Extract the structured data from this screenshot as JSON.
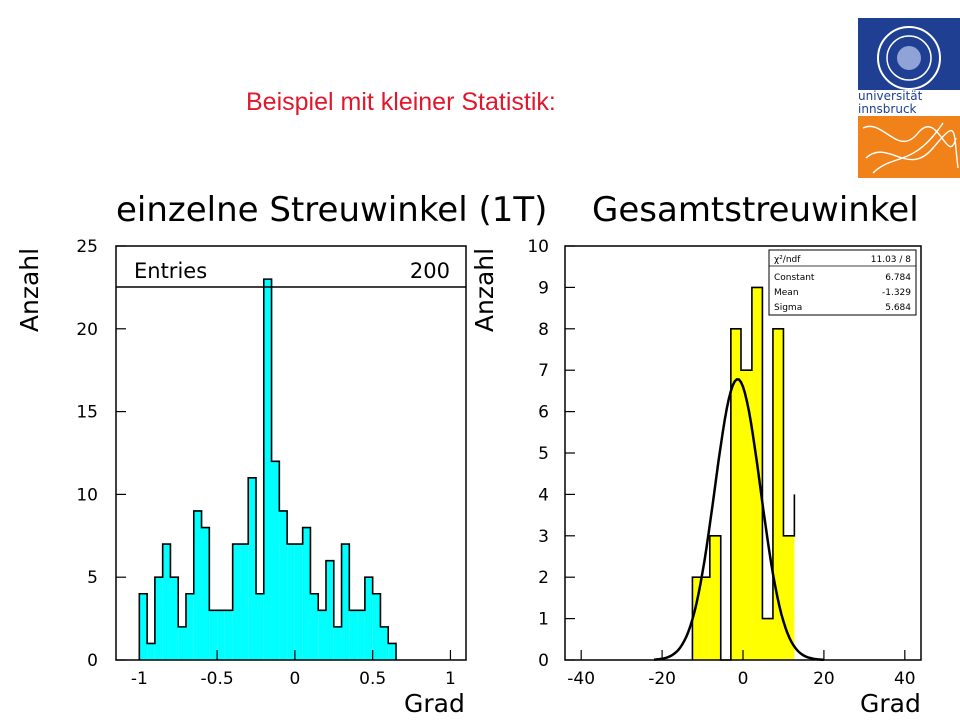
{
  "slide_title": "Beispiel mit kleiner Statistik:",
  "logo": {
    "text_line1": "universität",
    "text_line2": "innsbruck",
    "colors": {
      "blue": "#1f3f92",
      "orange": "#f08219"
    }
  },
  "chart_data": [
    {
      "type": "bar",
      "title": "einzelne Streuwinkel (1T)",
      "xlabel": "Grad",
      "ylabel": "Anzahl",
      "xlim": [
        -1.15,
        1.1
      ],
      "ylim": [
        0,
        25
      ],
      "fill_color": "#00ffff",
      "bin_edges_start": -1.0,
      "bin_width": 0.05,
      "values": [
        4,
        1,
        5,
        7,
        5,
        2,
        4,
        9,
        8,
        3,
        3,
        3,
        7,
        7,
        11,
        4,
        23,
        12,
        9,
        7,
        7,
        8,
        4,
        3,
        6,
        2,
        7,
        3,
        3,
        5,
        4,
        2,
        1
      ],
      "xticks": [
        -1,
        -0.5,
        0,
        0.5,
        1
      ],
      "xtick_labels": [
        "-1",
        "-0.5",
        "0",
        "0.5",
        "1"
      ],
      "yticks": [
        0,
        5,
        10,
        15,
        20,
        25
      ],
      "stats": [
        {
          "label": "Entries",
          "value": "200"
        }
      ]
    },
    {
      "type": "bar",
      "title": "Gesamtstreuwinkel",
      "xlabel": "Grad",
      "ylabel": "Anzahl",
      "xlim": [
        -44,
        44
      ],
      "ylim": [
        0,
        10
      ],
      "fill_color": "#ffff00",
      "bin_edges": [
        -12.5,
        -8.2,
        -5.5,
        -3.0,
        -0.5,
        2.2,
        4.8,
        7.4,
        10.0,
        12.7
      ],
      "values": [
        2,
        3,
        0,
        8,
        7,
        9,
        1,
        8,
        3,
        4
      ],
      "xticks": [
        -40,
        -20,
        0,
        20,
        40
      ],
      "xtick_labels": [
        "-40",
        "-20",
        "0",
        "20",
        "40"
      ],
      "yticks": [
        0,
        1,
        2,
        3,
        4,
        5,
        6,
        7,
        8,
        9,
        10
      ],
      "fit": {
        "type": "gaussian",
        "constant": 6.784,
        "mean": -1.329,
        "sigma": 5.684
      },
      "stats": [
        {
          "label": "χ²/ndf",
          "value": "11.03  /  8"
        },
        {
          "label": "Constant",
          "value": "6.784"
        },
        {
          "label": "Mean",
          "value": "-1.329"
        },
        {
          "label": "Sigma",
          "value": "5.684"
        }
      ]
    }
  ]
}
